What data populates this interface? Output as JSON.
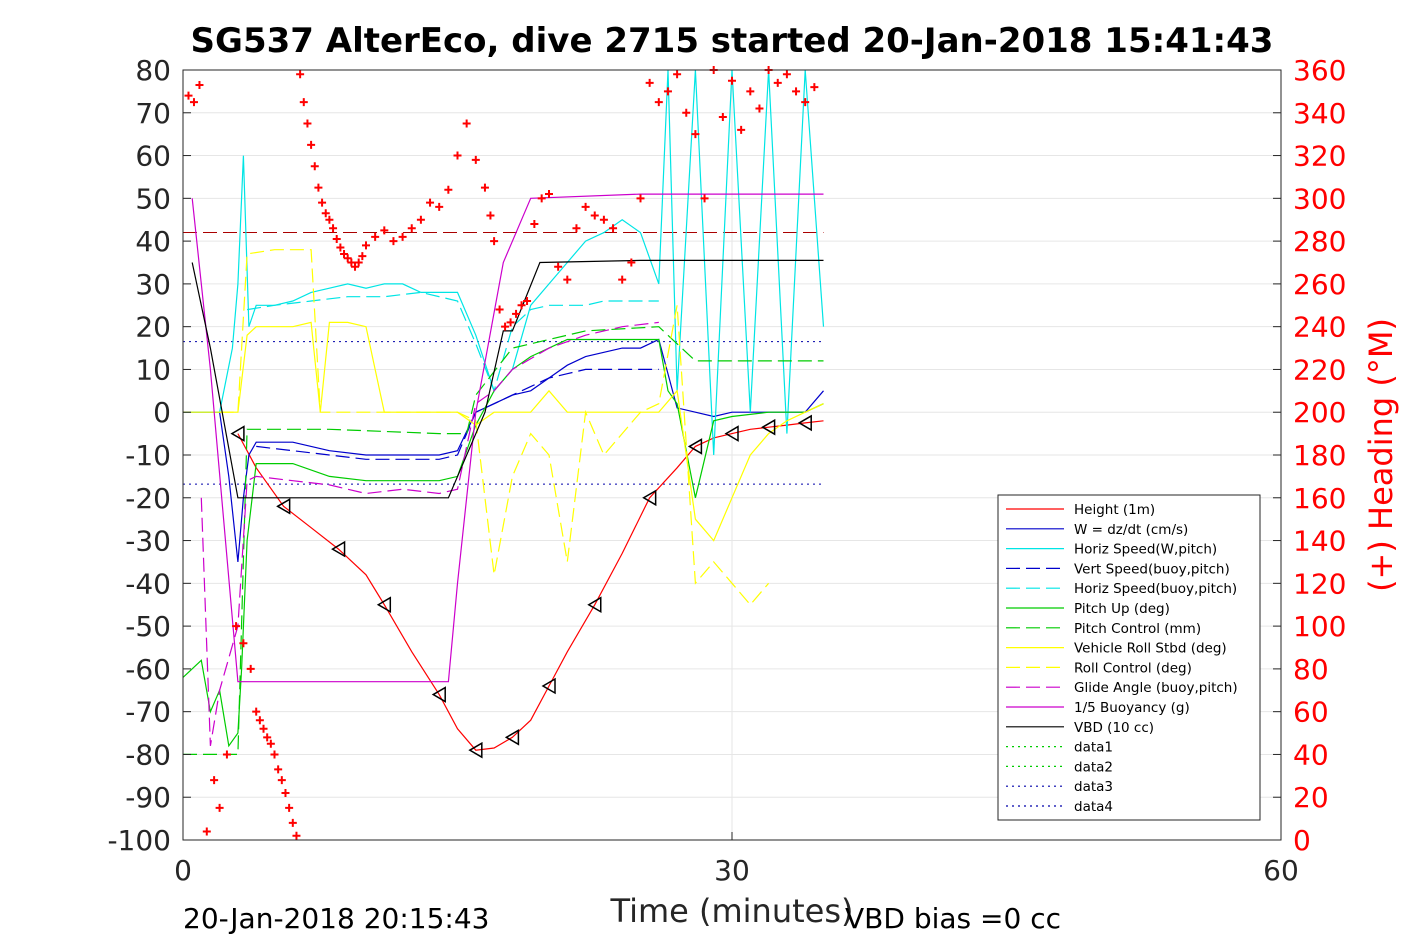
{
  "chart_data": {
    "type": "line",
    "title": "SG537 AlterEco, dive 2715 started 20-Jan-2018 15:41:43",
    "xlabel": "Time (minutes)",
    "ylabel_right": "(+) Heading (°M)",
    "xlim": [
      0,
      60
    ],
    "ylim": [
      -100,
      80
    ],
    "ylim_right": [
      0,
      360
    ],
    "x_ticks": [
      "0",
      "30",
      "60"
    ],
    "y_ticks": [
      "80",
      "70",
      "60",
      "50",
      "40",
      "30",
      "20",
      "10",
      "0",
      "-10",
      "-20",
      "-30",
      "-40",
      "-50",
      "-60",
      "-70",
      "-80",
      "-90",
      "-100"
    ],
    "y_right_ticks": [
      "360",
      "340",
      "320",
      "300",
      "280",
      "260",
      "240",
      "220",
      "200",
      "180",
      "160",
      "140",
      "120",
      "100",
      "80",
      "60",
      "40",
      "20",
      "0"
    ],
    "grid": true,
    "legend_position": "lower-right",
    "footer_left": "20-Jan-2018 20:15:43",
    "footer_right": "VBD bias =0 cc",
    "reference_lines": [
      {
        "y": 42,
        "color": "#aa0000",
        "style": "dashed"
      },
      {
        "y": 16.5,
        "color": "#0000aa",
        "style": "dotted"
      },
      {
        "y": -16.8,
        "color": "#0000aa",
        "style": "dotted"
      }
    ],
    "series": [
      {
        "name": "Height (1m)",
        "color": "#ff0000",
        "style": "solid",
        "x": [
          3,
          4,
          5.5,
          7,
          8.5,
          10,
          11,
          12.5,
          14,
          15,
          16,
          17,
          18,
          19,
          20,
          21,
          22.5,
          24,
          25.5,
          27,
          28,
          29,
          30,
          31,
          32,
          33,
          34,
          35
        ],
        "y": [
          -5,
          -13,
          -22,
          -27,
          -32,
          -38,
          -45,
          -56,
          -66,
          -74,
          -79,
          -78.5,
          -76,
          -72,
          -64,
          -56,
          -45,
          -33,
          -20,
          -13,
          -8,
          -6,
          -5,
          -4,
          -3.5,
          -3,
          -2.5,
          -2
        ]
      },
      {
        "name": "W = dz/dt (cm/s)",
        "color": "#0000cc",
        "style": "solid",
        "x": [
          0,
          1,
          2,
          2.5,
          3,
          3.3,
          3.6,
          4,
          5,
          6,
          7,
          8,
          10,
          12,
          14,
          15,
          16,
          17,
          18,
          19,
          20,
          21,
          22,
          23,
          24,
          25,
          26,
          27,
          28,
          29,
          30,
          32,
          34,
          35
        ],
        "y": [
          0,
          0,
          0,
          -15,
          -35,
          -20,
          -10,
          -7,
          -7,
          -7,
          -8,
          -9,
          -10,
          -10,
          -10,
          -9,
          0,
          2,
          4,
          5,
          8,
          11,
          13,
          14,
          15,
          15,
          17,
          1,
          0,
          -1,
          0,
          0,
          0,
          5
        ]
      },
      {
        "name": "Horiz Speed(W,pitch)",
        "color": "#00e5e5",
        "style": "solid",
        "x": [
          0,
          1,
          2,
          2.7,
          3,
          3.3,
          3.6,
          4,
          5,
          6,
          7,
          8,
          9,
          10,
          11,
          12,
          13,
          14,
          15,
          16,
          17,
          18,
          19,
          20,
          21,
          22,
          23,
          24,
          25,
          26,
          26.5,
          27,
          28,
          29,
          30,
          31,
          32,
          33,
          34,
          35
        ],
        "y": [
          0,
          0,
          0,
          15,
          30,
          60,
          20,
          25,
          25,
          26,
          28,
          29,
          30,
          29,
          30,
          30,
          28,
          28,
          28,
          18,
          5,
          10,
          25,
          30,
          35,
          40,
          42,
          45,
          42,
          30,
          80,
          5,
          80,
          -10,
          80,
          0,
          80,
          -5,
          80,
          20
        ]
      },
      {
        "name": "Vert Speed(buoy,pitch)",
        "color": "#0000cc",
        "style": "dashed",
        "x": [
          4,
          8,
          10,
          12,
          14,
          15,
          16,
          17,
          18,
          19,
          20,
          21,
          22,
          23,
          24,
          25,
          26
        ],
        "y": [
          -8,
          -10,
          -11,
          -11,
          -11,
          -10,
          0,
          2,
          4,
          6,
          8,
          9,
          10,
          10,
          10,
          10,
          10
        ]
      },
      {
        "name": "Horiz Speed(buoy,pitch)",
        "color": "#00e5e5",
        "style": "dashed",
        "x": [
          3.5,
          5,
          7,
          9,
          11,
          13,
          15,
          16,
          17,
          18,
          19,
          20,
          21,
          22,
          23,
          24,
          25,
          26
        ],
        "y": [
          24,
          25,
          26,
          27,
          27,
          28,
          26,
          16,
          5,
          20,
          24,
          25,
          25,
          25,
          26,
          26,
          26,
          26
        ]
      },
      {
        "name": "Pitch Up (deg)",
        "color": "#00cc00",
        "style": "solid",
        "x": [
          0,
          1,
          1.5,
          2,
          2.5,
          3,
          3.2,
          3.5,
          4,
          6,
          8,
          10,
          12,
          14,
          15,
          16,
          17,
          18,
          19,
          20,
          21,
          22,
          23,
          24,
          25,
          26,
          26.5,
          27,
          28,
          29,
          30,
          32,
          34,
          35
        ],
        "y": [
          -62,
          -58,
          -70,
          -65,
          -78,
          -75,
          -60,
          -30,
          -12,
          -12,
          -15,
          -16,
          -16,
          -16,
          -15,
          -3,
          5,
          10,
          13,
          15,
          17,
          17,
          17,
          17,
          17,
          17,
          5,
          2,
          -20,
          -2,
          -1,
          0,
          0,
          2
        ]
      },
      {
        "name": "Pitch Control (mm)",
        "color": "#00cc00",
        "style": "dashed",
        "x": [
          0,
          3,
          3.5,
          8,
          14,
          15.5,
          16,
          18,
          22,
          26,
          28,
          30,
          32,
          35
        ],
        "y": [
          -80,
          -80,
          -4,
          -4,
          -5,
          -5,
          4,
          15,
          19,
          20,
          12,
          12,
          12,
          12
        ]
      },
      {
        "name": "Vehicle Roll Stbd (deg)",
        "color": "#ffff00",
        "style": "solid",
        "x": [
          0,
          1,
          2,
          3,
          3.5,
          4,
          5,
          6,
          7,
          7.5,
          8,
          9,
          10,
          11,
          12,
          13,
          14,
          15,
          16,
          17,
          18,
          19,
          20,
          21,
          22,
          23,
          24,
          25,
          26,
          27,
          28,
          29,
          30,
          31,
          32,
          33,
          34,
          35
        ],
        "y": [
          0,
          0,
          0,
          0,
          18,
          20,
          20,
          20,
          21,
          0,
          21,
          21,
          20,
          0,
          0,
          0,
          0,
          0,
          -3,
          0,
          0,
          0,
          5,
          0,
          0,
          0,
          0,
          0,
          0,
          5,
          -25,
          -30,
          -20,
          -10,
          -5,
          -2,
          0,
          2
        ]
      },
      {
        "name": "Roll Control (deg)",
        "color": "#ffff00",
        "style": "dashed",
        "x": [
          2,
          3,
          3.5,
          5,
          7,
          7.5,
          8,
          10,
          11,
          12,
          15,
          16,
          17,
          18,
          19,
          20,
          21,
          22,
          23,
          24,
          25,
          26,
          27,
          28,
          29,
          30,
          31,
          32
        ],
        "y": [
          0,
          0,
          37,
          38,
          38,
          0,
          0,
          0,
          0,
          0,
          0,
          -2,
          -38,
          -15,
          -5,
          -10,
          -35,
          0,
          -10,
          -5,
          0,
          2,
          25,
          -40,
          -35,
          -40,
          -45,
          -40
        ]
      },
      {
        "name": "Glide Angle (buoy,pitch)",
        "color": "#cc00cc",
        "style": "dashed",
        "x": [
          1,
          1.5,
          2,
          3,
          3.5,
          4,
          6,
          8,
          10,
          12,
          14,
          15,
          16,
          17,
          18,
          20,
          22,
          24,
          26
        ],
        "y": [
          -20,
          -78,
          -65,
          -50,
          -16,
          -15,
          -16,
          -17,
          -19,
          -18,
          -19,
          -18,
          2,
          5,
          10,
          15,
          18,
          20,
          21
        ]
      },
      {
        "name": "1/5 Buoyancy (g)",
        "color": "#cc00cc",
        "style": "solid",
        "x": [
          0.5,
          1.5,
          3,
          5,
          10,
          14.5,
          15,
          16,
          17.5,
          19,
          25,
          30,
          35
        ],
        "y": [
          50,
          10,
          -63,
          -63,
          -63,
          -63,
          -40,
          0,
          35,
          50,
          51,
          51,
          51
        ]
      },
      {
        "name": "VBD (10 cc)",
        "color": "#000000",
        "style": "solid",
        "x": [
          0.5,
          1.5,
          3,
          5,
          10,
          14.5,
          16.5,
          17.5,
          18,
          19.5,
          25,
          30,
          35
        ],
        "y": [
          35,
          15,
          -20,
          -20,
          -20,
          -20,
          0,
          19,
          19,
          35,
          35.5,
          35.5,
          35.5
        ]
      },
      {
        "name": "data1",
        "color": "#00cc00",
        "style": "dotted",
        "x": [],
        "y": []
      },
      {
        "name": "data2",
        "color": "#00cc00",
        "style": "dotted",
        "x": [],
        "y": []
      },
      {
        "name": "data3",
        "color": "#0000aa",
        "style": "dotted",
        "x": [],
        "y": []
      },
      {
        "name": "data4",
        "color": "#0000aa",
        "style": "dotted",
        "x": [],
        "y": []
      }
    ],
    "heading_points": {
      "color": "#ff0000",
      "marker": "+",
      "x": [
        0.3,
        0.6,
        0.9,
        1.3,
        1.7,
        2.0,
        2.4,
        2.9,
        3.3,
        3.7,
        4.0,
        4.2,
        4.4,
        4.6,
        4.8,
        5.0,
        5.2,
        5.4,
        5.6,
        5.8,
        6.0,
        6.2,
        6.4,
        6.6,
        6.8,
        7.0,
        7.2,
        7.4,
        7.6,
        7.8,
        8.0,
        8.2,
        8.4,
        8.6,
        8.8,
        9.0,
        9.2,
        9.4,
        9.6,
        9.8,
        10.0,
        10.5,
        11.0,
        11.5,
        12.0,
        12.5,
        13.0,
        13.5,
        14.0,
        14.5,
        15.0,
        15.5,
        16.0,
        16.5,
        16.8,
        17.0,
        17.3,
        17.6,
        17.9,
        18.2,
        18.5,
        18.8,
        19.2,
        19.6,
        20.0,
        20.5,
        21.0,
        21.5,
        22.0,
        22.5,
        23.0,
        23.5,
        24.0,
        24.5,
        25.0,
        25.5,
        26.0,
        26.5,
        27.0,
        27.5,
        28.0,
        28.5,
        29.0,
        29.5,
        30.0,
        30.5,
        31.0,
        31.5,
        32.0,
        32.5,
        33.0,
        33.5,
        34.0,
        34.5
      ],
      "y": [
        348,
        345,
        353,
        4,
        28,
        15,
        40,
        100,
        92,
        80,
        60,
        56,
        52,
        48,
        45,
        40,
        33,
        28,
        22,
        15,
        8,
        2,
        358,
        345,
        335,
        325,
        315,
        305,
        298,
        293,
        290,
        286,
        281,
        277,
        274,
        272,
        270,
        268,
        270,
        273,
        278,
        282,
        285,
        280,
        282,
        286,
        290,
        298,
        296,
        304,
        320,
        335,
        318,
        305,
        292,
        280,
        248,
        240,
        242,
        246,
        250,
        252,
        288,
        300,
        302,
        268,
        262,
        286,
        296,
        292,
        290,
        286,
        262,
        270,
        300,
        354,
        345,
        350,
        358,
        340,
        330,
        300,
        360,
        338,
        355,
        332,
        350,
        342,
        360,
        354,
        358,
        350,
        345,
        352
      ]
    }
  }
}
